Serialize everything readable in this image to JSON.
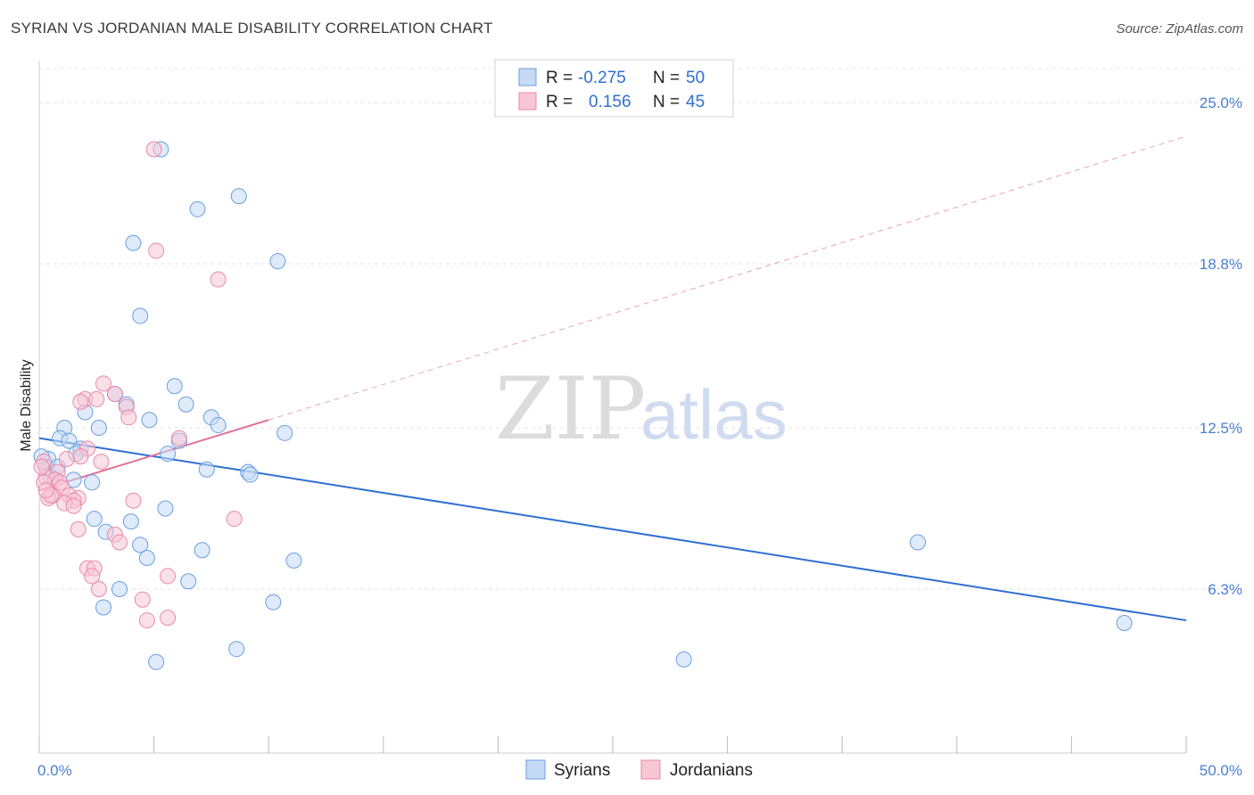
{
  "title": "SYRIAN VS JORDANIAN MALE DISABILITY CORRELATION CHART",
  "source": "Source: ZipAtlas.com",
  "watermark": {
    "zip": "ZIP",
    "atlas": "atlas"
  },
  "legend": {
    "rows": [
      {
        "r_label": "R =",
        "r_value": "-0.275",
        "n_label": "N =",
        "n_value": "50"
      },
      {
        "r_label": "R =",
        "r_value": "0.156",
        "n_label": "N =",
        "n_value": "45"
      }
    ]
  },
  "chart_data": {
    "type": "scatter",
    "xlabel": "",
    "ylabel": "Male Disability",
    "xlim": [
      0,
      50
    ],
    "ylim": [
      0,
      26.3
    ],
    "x_tick_labels": [
      {
        "value": 0,
        "label": "0.0%"
      },
      {
        "value": 50,
        "label": "50.0%"
      }
    ],
    "y_tick_labels": [
      {
        "value": 6.3,
        "label": "6.3%"
      },
      {
        "value": 12.5,
        "label": "12.5%"
      },
      {
        "value": 18.8,
        "label": "18.8%"
      },
      {
        "value": 25.0,
        "label": "25.0%"
      }
    ],
    "x_minor_ticks": [
      0,
      5,
      10,
      15,
      20,
      25,
      30,
      35,
      40,
      45,
      50
    ],
    "grid": true,
    "legend_position": "top-center",
    "series": [
      {
        "name": "Syrians",
        "color": "#6a9ee0",
        "fill": "#c5daf5",
        "trend": {
          "x0": 0,
          "y0": 12.1,
          "x1": 50,
          "y1": 5.1,
          "style": "solid"
        },
        "points": [
          {
            "x": 5.3,
            "y": 23.2
          },
          {
            "x": 8.7,
            "y": 21.4
          },
          {
            "x": 6.9,
            "y": 20.9
          },
          {
            "x": 4.1,
            "y": 19.6
          },
          {
            "x": 10.4,
            "y": 18.9
          },
          {
            "x": 4.4,
            "y": 16.8
          },
          {
            "x": 5.9,
            "y": 14.1
          },
          {
            "x": 3.3,
            "y": 13.8
          },
          {
            "x": 3.8,
            "y": 13.4
          },
          {
            "x": 6.4,
            "y": 13.4
          },
          {
            "x": 2.0,
            "y": 13.1
          },
          {
            "x": 7.5,
            "y": 12.9
          },
          {
            "x": 4.8,
            "y": 12.8
          },
          {
            "x": 7.8,
            "y": 12.6
          },
          {
            "x": 1.1,
            "y": 12.5
          },
          {
            "x": 2.6,
            "y": 12.5
          },
          {
            "x": 10.7,
            "y": 12.3
          },
          {
            "x": 0.9,
            "y": 12.1
          },
          {
            "x": 1.3,
            "y": 12.0
          },
          {
            "x": 6.1,
            "y": 12.0
          },
          {
            "x": 1.8,
            "y": 11.7
          },
          {
            "x": 1.6,
            "y": 11.5
          },
          {
            "x": 5.6,
            "y": 11.5
          },
          {
            "x": 0.4,
            "y": 11.3
          },
          {
            "x": 0.3,
            "y": 11.0
          },
          {
            "x": 0.8,
            "y": 11.0
          },
          {
            "x": 7.3,
            "y": 10.9
          },
          {
            "x": 9.1,
            "y": 10.8
          },
          {
            "x": 9.2,
            "y": 10.7
          },
          {
            "x": 0.5,
            "y": 10.6
          },
          {
            "x": 1.5,
            "y": 10.5
          },
          {
            "x": 2.3,
            "y": 10.4
          },
          {
            "x": 5.5,
            "y": 9.4
          },
          {
            "x": 2.4,
            "y": 9.0
          },
          {
            "x": 4.0,
            "y": 8.9
          },
          {
            "x": 2.9,
            "y": 8.5
          },
          {
            "x": 4.4,
            "y": 8.0
          },
          {
            "x": 7.1,
            "y": 7.8
          },
          {
            "x": 4.7,
            "y": 7.5
          },
          {
            "x": 11.1,
            "y": 7.4
          },
          {
            "x": 6.5,
            "y": 6.6
          },
          {
            "x": 3.5,
            "y": 6.3
          },
          {
            "x": 10.2,
            "y": 5.8
          },
          {
            "x": 2.8,
            "y": 5.6
          },
          {
            "x": 38.3,
            "y": 8.1
          },
          {
            "x": 47.3,
            "y": 5.0
          },
          {
            "x": 8.6,
            "y": 4.0
          },
          {
            "x": 28.1,
            "y": 3.6
          },
          {
            "x": 5.1,
            "y": 3.5
          },
          {
            "x": 0.1,
            "y": 11.4
          }
        ]
      },
      {
        "name": "Jordanians",
        "color": "#e88aa8",
        "fill": "#f7c7d6",
        "trend": {
          "x0": 0,
          "y0": 10.1,
          "x1": 10,
          "y1": 12.8,
          "style": "solid",
          "dashed_to": {
            "x": 50,
            "y": 23.7
          }
        },
        "points": [
          {
            "x": 5.0,
            "y": 23.2
          },
          {
            "x": 5.1,
            "y": 19.3
          },
          {
            "x": 7.8,
            "y": 18.2
          },
          {
            "x": 2.8,
            "y": 14.2
          },
          {
            "x": 3.3,
            "y": 13.8
          },
          {
            "x": 2.0,
            "y": 13.6
          },
          {
            "x": 2.5,
            "y": 13.6
          },
          {
            "x": 1.8,
            "y": 13.5
          },
          {
            "x": 3.8,
            "y": 13.3
          },
          {
            "x": 3.9,
            "y": 12.9
          },
          {
            "x": 6.1,
            "y": 12.1
          },
          {
            "x": 2.1,
            "y": 11.7
          },
          {
            "x": 1.8,
            "y": 11.4
          },
          {
            "x": 1.2,
            "y": 11.3
          },
          {
            "x": 2.7,
            "y": 11.2
          },
          {
            "x": 0.2,
            "y": 11.2
          },
          {
            "x": 0.8,
            "y": 10.8
          },
          {
            "x": 0.3,
            "y": 10.6
          },
          {
            "x": 0.7,
            "y": 10.5
          },
          {
            "x": 0.9,
            "y": 10.4
          },
          {
            "x": 0.2,
            "y": 10.4
          },
          {
            "x": 1.0,
            "y": 10.2
          },
          {
            "x": 0.6,
            "y": 9.9
          },
          {
            "x": 1.3,
            "y": 9.9
          },
          {
            "x": 0.4,
            "y": 9.8
          },
          {
            "x": 1.7,
            "y": 9.8
          },
          {
            "x": 1.5,
            "y": 9.7
          },
          {
            "x": 4.1,
            "y": 9.7
          },
          {
            "x": 1.1,
            "y": 9.6
          },
          {
            "x": 1.5,
            "y": 9.5
          },
          {
            "x": 8.5,
            "y": 9.0
          },
          {
            "x": 1.7,
            "y": 8.6
          },
          {
            "x": 3.3,
            "y": 8.4
          },
          {
            "x": 3.5,
            "y": 8.1
          },
          {
            "x": 2.1,
            "y": 7.1
          },
          {
            "x": 2.4,
            "y": 7.1
          },
          {
            "x": 2.3,
            "y": 6.8
          },
          {
            "x": 5.6,
            "y": 6.8
          },
          {
            "x": 2.6,
            "y": 6.3
          },
          {
            "x": 4.5,
            "y": 5.9
          },
          {
            "x": 5.6,
            "y": 5.2
          },
          {
            "x": 4.7,
            "y": 5.1
          },
          {
            "x": 0.1,
            "y": 11.0
          },
          {
            "x": 0.5,
            "y": 9.9
          },
          {
            "x": 0.3,
            "y": 10.1
          }
        ]
      }
    ]
  }
}
